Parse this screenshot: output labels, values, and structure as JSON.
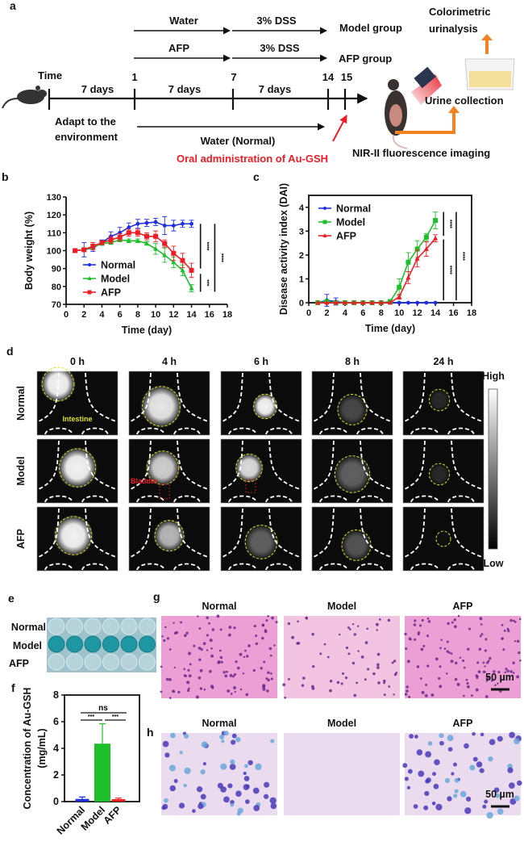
{
  "panel_labels": {
    "a": "a",
    "b": "b",
    "c": "c",
    "d": "d",
    "e": "e",
    "f": "f",
    "g": "g",
    "h": "h"
  },
  "schematic": {
    "model_row": {
      "first": "Water",
      "second": "3% DSS",
      "result": "Model group"
    },
    "afp_row": {
      "first": "AFP",
      "second": "3% DSS",
      "result": "AFP group"
    },
    "time_label": "Time",
    "tick_labels": [
      "1",
      "7",
      "14",
      "15"
    ],
    "durations": [
      "7 days",
      "7 days",
      "7 days"
    ],
    "adapt_line1": "Adapt to the",
    "adapt_line2": "environment",
    "normal_water": "Water (Normal)",
    "oral_admin": "Oral administration of Au-GSH",
    "nir_imaging": "NIR-II fluorescence imaging",
    "colorimetric_line1": "Colorimetric",
    "colorimetric_line2": "urinalysis",
    "urine_collection": "Urine collection",
    "colors": {
      "red": "#ee1c24",
      "orange": "#f58220"
    }
  },
  "chart_data": [
    {
      "id": "b",
      "type": "line",
      "xlabel": "Time (day)",
      "ylabel": "Body weight (%)",
      "xlim": [
        0,
        18
      ],
      "ylim": [
        70,
        130
      ],
      "xticks": [
        0,
        2,
        4,
        6,
        8,
        10,
        12,
        14,
        16,
        18
      ],
      "yticks": [
        70,
        80,
        90,
        100,
        110,
        120,
        130
      ],
      "legend_position": "bottom-left",
      "x": [
        1,
        2,
        3,
        4,
        5,
        6,
        7,
        8,
        9,
        10,
        11,
        12,
        13,
        14
      ],
      "series": [
        {
          "name": "Normal",
          "color": "#1f2fe0",
          "marker": "circle",
          "values": [
            100,
            100.5,
            101.5,
            104.5,
            108,
            110,
            113,
            115,
            115.5,
            116,
            114,
            114,
            115,
            115
          ],
          "errors": [
            1,
            4,
            2,
            1.5,
            2.5,
            3,
            2.5,
            2.5,
            2,
            2,
            5,
            3,
            2,
            2
          ]
        },
        {
          "name": "Model",
          "color": "#1dbf2b",
          "marker": "triangle",
          "values": [
            100,
            100.5,
            102,
            104,
            104.5,
            106,
            105.5,
            105.5,
            104,
            101,
            97.5,
            93.5,
            89,
            79
          ],
          "errors": [
            1,
            1,
            1,
            1,
            1,
            1,
            1,
            1,
            1,
            3,
            4,
            3,
            3,
            2
          ]
        },
        {
          "name": "AFP",
          "color": "#ee1c24",
          "marker": "square",
          "values": [
            100,
            100.5,
            102.5,
            104.5,
            106,
            107.5,
            110,
            110,
            108,
            108,
            104,
            98.5,
            94.5,
            89
          ],
          "errors": [
            1,
            1,
            2,
            1,
            2,
            2,
            2,
            2,
            2,
            3,
            2,
            4,
            4,
            4
          ]
        }
      ],
      "significance": [
        {
          "x": 15,
          "from": 115,
          "to": 90,
          "label": "****"
        },
        {
          "x": 15,
          "from": 87,
          "to": 77,
          "label": "***"
        },
        {
          "x": 16.6,
          "from": 115,
          "to": 77,
          "label": "****"
        }
      ]
    },
    {
      "id": "c",
      "type": "line",
      "xlabel": "Time (day)",
      "ylabel": "Disease activity index (DAI)",
      "xlim": [
        0,
        18
      ],
      "ylim": [
        0,
        4.5
      ],
      "xticks": [
        0,
        2,
        4,
        6,
        8,
        10,
        12,
        14,
        16,
        18
      ],
      "yticks": [
        0,
        1,
        2,
        3,
        4
      ],
      "legend_position": "top-left",
      "x": [
        1,
        2,
        3,
        4,
        5,
        6,
        7,
        8,
        9,
        10,
        11,
        12,
        13,
        14
      ],
      "series": [
        {
          "name": "Normal",
          "color": "#1f2fe0",
          "marker": "circle",
          "values": [
            0,
            0.1,
            0.05,
            0,
            0,
            0,
            0,
            0,
            0,
            0,
            0,
            0,
            0,
            0
          ],
          "errors": [
            0,
            0.25,
            0.15,
            0,
            0,
            0,
            0,
            0,
            0,
            0,
            0,
            0,
            0,
            0
          ]
        },
        {
          "name": "Model",
          "color": "#1dbf2b",
          "marker": "square",
          "values": [
            0,
            0.05,
            0,
            0,
            0,
            0,
            0,
            0,
            0.05,
            0.65,
            1.7,
            2.25,
            2.75,
            3.45
          ],
          "errors": [
            0,
            0.05,
            0,
            0,
            0,
            0,
            0,
            0,
            0.05,
            0.35,
            0.4,
            0.35,
            0.15,
            0.35
          ]
        },
        {
          "name": "AFP",
          "color": "#ee1c24",
          "marker": "triangle",
          "values": [
            0,
            0,
            0,
            0,
            0,
            0,
            0,
            0,
            0,
            0.25,
            1.05,
            1.85,
            2.25,
            2.7
          ],
          "errors": [
            0,
            0,
            0,
            0,
            0,
            0,
            0,
            0,
            0,
            0.1,
            0.25,
            0.35,
            0.3,
            0.15
          ]
        }
      ],
      "significance": [
        {
          "x": 14.9,
          "from": 3.8,
          "to": 2.8,
          "label": "****"
        },
        {
          "x": 14.9,
          "from": 2.65,
          "to": 0.1,
          "label": "****"
        },
        {
          "x": 16.3,
          "from": 3.8,
          "to": 0.1,
          "label": "****"
        }
      ]
    },
    {
      "id": "f",
      "type": "bar",
      "xlabel": "",
      "ylabel": "Concentration of Au-GSH",
      "ylabel2": "(mg/mL)",
      "ylim": [
        0,
        8
      ],
      "yticks": [
        0,
        2,
        4,
        6,
        8
      ],
      "categories": [
        "Normal",
        "Model",
        "AFP"
      ],
      "values": [
        0.2,
        4.35,
        0.18
      ],
      "errors": [
        0.15,
        1.5,
        0.08
      ],
      "colors": [
        "#1f2fe0",
        "#1dbf2b",
        "#ee1c24"
      ],
      "significance": [
        {
          "from": 0,
          "to": 2,
          "label": "ns"
        },
        {
          "from": 0,
          "to": 1,
          "label": "***"
        },
        {
          "from": 1,
          "to": 2,
          "label": "***"
        }
      ]
    }
  ],
  "imaging": {
    "time_points": [
      "0 h",
      "4 h",
      "6 h",
      "8 h",
      "24 h"
    ],
    "groups": [
      "Normal",
      "Model",
      "AFP"
    ],
    "intestine_label": "Intestine",
    "bladder_label": "Bladder",
    "colorbar_high": "High",
    "colorbar_low": "Low"
  },
  "urinalysis": {
    "groups": [
      "Normal",
      "Model",
      "AFP"
    ]
  },
  "histology": {
    "g_groups": [
      "Normal",
      "Model",
      "AFP"
    ],
    "h_groups": [
      "Normal",
      "Model",
      "AFP"
    ],
    "scale_bar": "50 µm"
  }
}
